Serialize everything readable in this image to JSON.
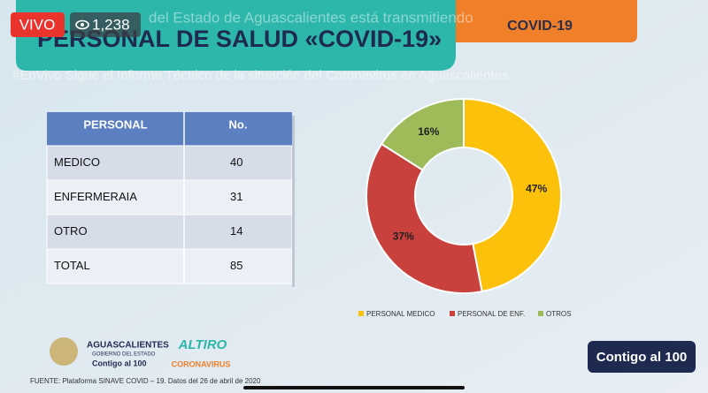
{
  "stream": {
    "live_badge": "VIVO",
    "viewers": "1,238",
    "caption_top": "del Estado de Aguascalientes está transmitiendo",
    "caption_bottom": "#EnVivo Sigue el Informe Técnico de la situación del Coronavirus en Aguascalientes"
  },
  "slide": {
    "title": "PERSONAL DE SALUD «COVID-19»",
    "tab": "COVID-19",
    "table": {
      "header": [
        "PERSONAL",
        "No."
      ],
      "rows": [
        [
          "MEDICO",
          40
        ],
        [
          "ENFERMERAIA",
          31
        ],
        [
          "OTRO",
          14
        ],
        [
          "TOTAL",
          85
        ]
      ]
    },
    "logos": {
      "state": "AGUASCALIENTES",
      "government": "GOBIERNO DEL ESTADO",
      "slogan": "Contigo al 100",
      "campaign": "ALTIRO",
      "campaign_sub": "CORONAVIRUS",
      "button": "Contigo al 100"
    },
    "source": "FUENTE: Plataforma SINAVE COVID – 19. Datos del 26 de abril de 2020"
  },
  "chart_data": {
    "type": "pie",
    "donut": true,
    "categories": [
      "PERSONAL MEDICO",
      "PERSONAL DE ENF.",
      "OTROS"
    ],
    "values": [
      47,
      37,
      16
    ],
    "value_labels": [
      "47%",
      "37%",
      "16%"
    ],
    "colors": [
      "#fcc10a",
      "#c9413d",
      "#9dbb59"
    ],
    "legend": "bottom"
  }
}
